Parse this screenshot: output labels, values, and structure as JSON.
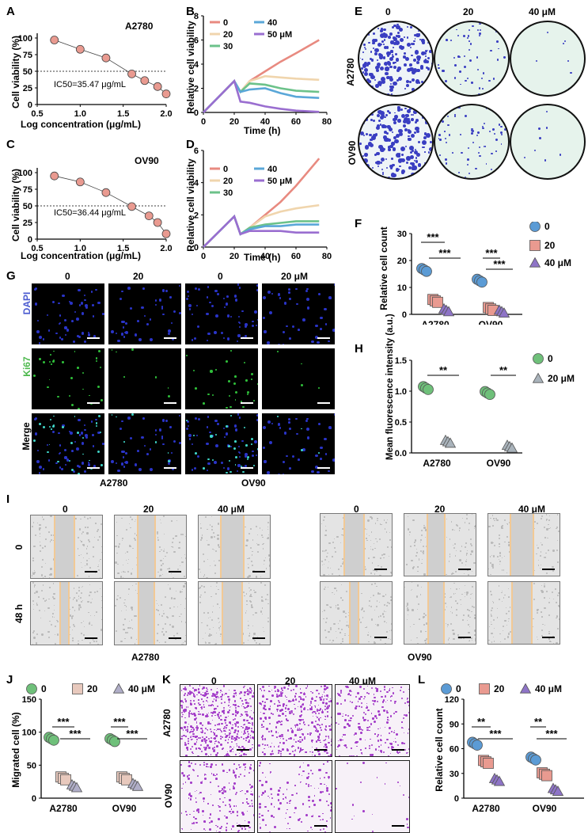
{
  "panels": {
    "A": {
      "letter": "A",
      "cell_line": "A2780",
      "ic50": "IC50=35.47 μg/mL",
      "ylabel": "Cell viability  (%)",
      "xlabel": "Log concentration  (μg/mL)"
    },
    "B": {
      "letter": "B",
      "ylabel": "Relative cell viability",
      "xlabel": "Time (h)"
    },
    "C": {
      "letter": "C",
      "cell_line": "OV90",
      "ic50": "IC50=36.44 μg/mL",
      "ylabel": "Cell viability  (%)",
      "xlabel": "Log concentration  (μg/mL)"
    },
    "D": {
      "letter": "D",
      "ylabel": "Relative cell viability",
      "xlabel": "Time (h)"
    },
    "E": {
      "letter": "E",
      "cols": [
        "0",
        "20",
        "40 μM"
      ],
      "rows": [
        "A2780",
        "OV90"
      ]
    },
    "F": {
      "letter": "F",
      "ylabel": "Relative cell count",
      "sig": [
        "***",
        "***",
        "***",
        "***"
      ]
    },
    "G": {
      "letter": "G",
      "cols": [
        "0",
        "20",
        "0",
        "20 μM"
      ],
      "rows": [
        "DAPI",
        "Ki67",
        "Merge"
      ],
      "groups": [
        "A2780",
        "OV90"
      ]
    },
    "H": {
      "letter": "H",
      "ylabel": "Mean fluorescence intensity (a.u.)",
      "sig": [
        "**",
        "**"
      ]
    },
    "I": {
      "letter": "I",
      "cols": [
        "0",
        "20",
        "40 μM"
      ],
      "rows": [
        "0",
        "48 h"
      ],
      "groups": [
        "A2780",
        "OV90"
      ]
    },
    "J": {
      "letter": "J",
      "ylabel": "Migrated cell (%)",
      "sig": [
        "***",
        "***",
        "***",
        "***"
      ]
    },
    "K": {
      "letter": "K",
      "cols": [
        "0",
        "20",
        "40 μM"
      ],
      "rows": [
        "A2780",
        "OV90"
      ]
    },
    "L": {
      "letter": "L",
      "ylabel": "Relative cell  count",
      "sig": [
        "**",
        "***",
        "**",
        "***"
      ]
    }
  },
  "colors": {
    "c0": "#e88a80",
    "c20": "#f0d5ad",
    "c30": "#6cc28a",
    "c40": "#5aa7d8",
    "c50": "#9a6ed0",
    "blue_dot": "#5b9bd5",
    "pink_sq": "#e99a90",
    "purple_tri": "#8e74c7",
    "green_dot": "#6fc07a",
    "grey_tri": "#a9b3bb",
    "beige_sq": "#e8c9bd",
    "lavender_tri": "#b0aec8"
  },
  "chart_data": [
    {
      "id": "A",
      "type": "scatter",
      "series": [
        {
          "values_x": [
            0.7,
            1.0,
            1.3,
            1.6,
            1.75,
            1.9,
            2.0
          ],
          "values_y": [
            97,
            83,
            70,
            46,
            36,
            27,
            16
          ]
        }
      ],
      "xlim": [
        0.5,
        2.0
      ],
      "ylim": [
        0,
        100
      ],
      "xticks": [
        "0.5",
        "1.0",
        "1.5",
        "2.0"
      ],
      "yticks": [
        "0",
        "25",
        "50",
        "75",
        "100"
      ]
    },
    {
      "id": "B",
      "type": "line",
      "x": [
        0,
        20,
        24,
        30,
        40,
        50,
        60,
        75
      ],
      "series": [
        {
          "name": "0",
          "values": [
            0,
            2.6,
            1.7,
            2.6,
            3.4,
            4.2,
            4.9,
            6.0
          ]
        },
        {
          "name": "20",
          "values": [
            0,
            2.6,
            1.7,
            2.6,
            3.0,
            2.9,
            2.8,
            2.7
          ]
        },
        {
          "name": "30",
          "values": [
            0,
            2.6,
            1.7,
            2.4,
            2.3,
            2.0,
            1.8,
            1.7
          ]
        },
        {
          "name": "40",
          "values": [
            0,
            2.6,
            1.7,
            1.9,
            2.0,
            1.6,
            1.3,
            1.2
          ]
        },
        {
          "name": "50 μM",
          "values": [
            0,
            2.6,
            0.9,
            0.8,
            0.5,
            0.3,
            0.15,
            0.05
          ]
        }
      ],
      "xlim": [
        0,
        80
      ],
      "ylim": [
        0,
        8
      ],
      "xticks": [
        "0",
        "20",
        "40",
        "60",
        "80"
      ],
      "yticks": [
        "0",
        "2",
        "4",
        "6",
        "8"
      ]
    },
    {
      "id": "C",
      "type": "scatter",
      "series": [
        {
          "values_x": [
            0.7,
            1.0,
            1.3,
            1.6,
            1.8,
            1.9,
            2.0
          ],
          "values_y": [
            95,
            86,
            70,
            49,
            35,
            25,
            8
          ]
        }
      ],
      "xlim": [
        0.5,
        2.0
      ],
      "ylim": [
        0,
        100
      ],
      "xticks": [
        "0.5",
        "1.0",
        "1.5",
        "2.0"
      ],
      "yticks": [
        "0",
        "25",
        "50",
        "75",
        "100"
      ]
    },
    {
      "id": "D",
      "type": "line",
      "x": [
        0,
        20,
        24,
        30,
        40,
        50,
        60,
        75
      ],
      "series": [
        {
          "name": "0",
          "values": [
            0,
            1.9,
            0.8,
            1.2,
            2.0,
            2.8,
            3.8,
            5.5
          ]
        },
        {
          "name": "20",
          "values": [
            0,
            1.9,
            0.8,
            1.2,
            1.9,
            2.2,
            2.4,
            2.6
          ]
        },
        {
          "name": "30",
          "values": [
            0,
            1.9,
            0.8,
            1.2,
            1.4,
            1.5,
            1.6,
            1.6
          ]
        },
        {
          "name": "40",
          "values": [
            0,
            1.9,
            0.8,
            1.1,
            1.3,
            1.3,
            1.4,
            1.4
          ]
        },
        {
          "name": "50  μM",
          "values": [
            0,
            1.9,
            0.8,
            1.0,
            1.0,
            1.0,
            0.9,
            0.9
          ]
        }
      ],
      "xlim": [
        0,
        80
      ],
      "ylim": [
        0,
        6
      ],
      "xticks": [
        "0",
        "20",
        "40",
        "60",
        "80"
      ],
      "yticks": [
        "0",
        "2",
        "4",
        "6"
      ]
    },
    {
      "id": "F",
      "type": "scatter",
      "categories": [
        "A2780",
        "OV90"
      ],
      "series": [
        {
          "name": "0",
          "values": [
            16.5,
            12.5
          ]
        },
        {
          "name": "20",
          "values": [
            5,
            2
          ]
        },
        {
          "name": "40 μM",
          "values": [
            1.5,
            1
          ]
        }
      ],
      "ylim": [
        0,
        30
      ],
      "yticks": [
        "0",
        "10",
        "20",
        "30"
      ]
    },
    {
      "id": "H",
      "type": "scatter",
      "categories": [
        "A2780",
        "OV90"
      ],
      "series": [
        {
          "name": "0",
          "values": [
            1.05,
            0.97
          ]
        },
        {
          "name": "20 μM",
          "values": [
            0.18,
            0.1
          ]
        }
      ],
      "ylim": [
        0,
        1.5
      ],
      "yticks": [
        "0.0",
        "0.5",
        "1.0",
        "1.5"
      ]
    },
    {
      "id": "J",
      "type": "scatter",
      "categories": [
        "A2780",
        "OV90"
      ],
      "series": [
        {
          "name": "0",
          "values": [
            90,
            88
          ]
        },
        {
          "name": "20",
          "values": [
            30,
            30
          ]
        },
        {
          "name": "40 μM",
          "values": [
            18,
            20
          ]
        }
      ],
      "ylim": [
        0,
        150
      ],
      "yticks": [
        "0",
        "50",
        "100",
        "150"
      ]
    },
    {
      "id": "L",
      "type": "scatter",
      "categories": [
        "A2780",
        "OV90"
      ],
      "series": [
        {
          "name": "0",
          "values": [
            66,
            48
          ]
        },
        {
          "name": "20",
          "values": [
            44,
            29
          ]
        },
        {
          "name": "40 μM",
          "values": [
            22,
            10
          ]
        }
      ],
      "ylim": [
        0,
        120
      ],
      "yticks": [
        "0",
        "30",
        "60",
        "90",
        "120"
      ]
    }
  ]
}
